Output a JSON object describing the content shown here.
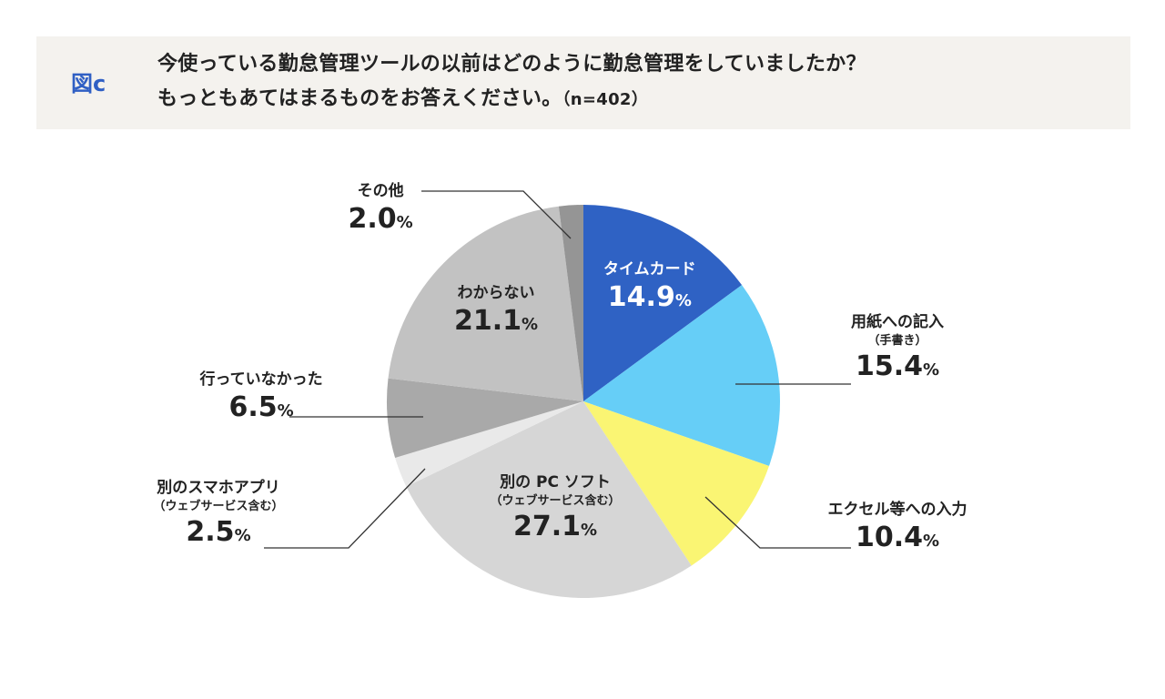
{
  "header": {
    "figure_label": "図c",
    "title_line1": "今使っている勤怠管理ツールの以前はどのように勤怠管理をしていましたか？",
    "title_line2": "もっともあてはまるものをお答えください。",
    "sample_size": "（n=402）"
  },
  "chart_data": {
    "type": "pie",
    "title": "今使っている勤怠管理ツールの以前はどのように勤怠管理をしていましたか？もっともあてはまるものをお答えください。（n=402）",
    "unit": "%",
    "start": "top, clockwise",
    "slices": [
      {
        "label": "タイムカード",
        "sublabel": "",
        "value": 14.9,
        "value_text": "14.9",
        "color": "#2f62c4",
        "label_color": "#ffffff"
      },
      {
        "label": "用紙への記入",
        "sublabel": "（手書き）",
        "value": 15.4,
        "value_text": "15.4",
        "color": "#66cef7",
        "label_color": "#222222"
      },
      {
        "label": "エクセル等への入力",
        "sublabel": "",
        "value": 10.4,
        "value_text": "10.4",
        "color": "#faf573",
        "label_color": "#222222"
      },
      {
        "label": "別の PC ソフト",
        "sublabel": "（ウェブサービス含む）",
        "value": 27.1,
        "value_text": "27.1",
        "color": "#d6d6d6",
        "label_color": "#222222"
      },
      {
        "label": "別のスマホアプリ",
        "sublabel": "（ウェブサービス含む）",
        "value": 2.5,
        "value_text": "2.5",
        "color": "#e9e9e9",
        "label_color": "#222222"
      },
      {
        "label": "行っていなかった",
        "sublabel": "",
        "value": 6.5,
        "value_text": "6.5",
        "color": "#a9a9a9",
        "label_color": "#222222"
      },
      {
        "label": "わからない",
        "sublabel": "",
        "value": 21.1,
        "value_text": "21.1",
        "color": "#c2c2c2",
        "label_color": "#222222"
      },
      {
        "label": "その他",
        "sublabel": "",
        "value": 2.0,
        "value_text": "2.0",
        "color": "#959595",
        "label_color": "#222222"
      }
    ],
    "percent_sign": "%"
  }
}
